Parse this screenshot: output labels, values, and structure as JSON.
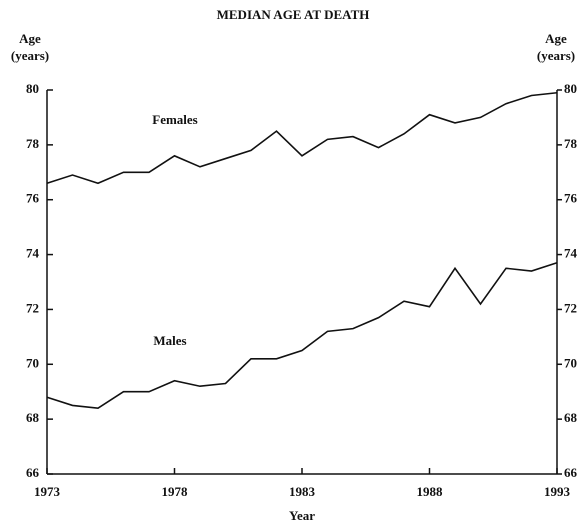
{
  "chart_data": {
    "type": "line",
    "title": "MEDIAN AGE AT DEATH",
    "ylabel": [
      "Age",
      "(years)"
    ],
    "y2label": [
      "Age",
      "(years)"
    ],
    "xlabel": "Year",
    "x": [
      1973,
      1974,
      1975,
      1976,
      1977,
      1978,
      1979,
      1980,
      1981,
      1982,
      1983,
      1984,
      1985,
      1986,
      1987,
      1988,
      1989,
      1990,
      1991,
      1992,
      1993
    ],
    "series": [
      {
        "name": "Females",
        "color": "#111111",
        "values": [
          76.6,
          76.9,
          76.6,
          77.0,
          77.0,
          77.6,
          77.2,
          77.5,
          77.8,
          78.5,
          77.6,
          78.2,
          78.3,
          77.9,
          78.4,
          79.1,
          78.8,
          79.0,
          79.5,
          79.8,
          79.9
        ]
      },
      {
        "name": "Males",
        "color": "#111111",
        "values": [
          68.8,
          68.5,
          68.4,
          69.0,
          69.0,
          69.4,
          69.2,
          69.3,
          70.2,
          70.2,
          70.5,
          71.2,
          71.3,
          71.7,
          72.3,
          72.1,
          73.5,
          72.2,
          73.5,
          73.4,
          73.7
        ]
      }
    ],
    "xlim": [
      1973,
      1993
    ],
    "xticks": [
      1973,
      1978,
      1983,
      1988,
      1993
    ],
    "ylim": [
      66,
      80
    ],
    "yticks": [
      66,
      68,
      70,
      72,
      74,
      76,
      78,
      80
    ],
    "y2lim": [
      66,
      80
    ],
    "y2ticks": [
      66,
      68,
      70,
      72,
      74,
      76,
      78,
      80
    ],
    "grid": false
  }
}
